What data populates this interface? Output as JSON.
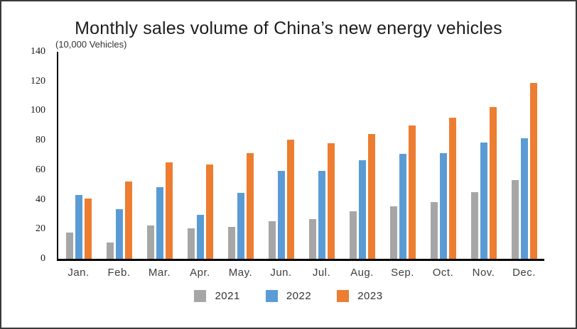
{
  "window": {
    "background": "#ffffff",
    "border_color": "#3a3a3a"
  },
  "chart_data": {
    "type": "bar",
    "title": "Monthly sales volume of China’s new energy vehicles",
    "unit_label": "(10,000 Vehicles)",
    "categories": [
      "Jan.",
      "Feb.",
      "Mar.",
      "Apr.",
      "May.",
      "Jun.",
      "Jul.",
      "Aug.",
      "Sep.",
      "Oct.",
      "Nov.",
      "Dec."
    ],
    "series": [
      {
        "name": "2021",
        "color": "#A6A6A6",
        "values": [
          17.9,
          11.0,
          22.6,
          20.6,
          21.7,
          25.6,
          27.1,
          32.1,
          35.7,
          38.3,
          45.0,
          53.1
        ]
      },
      {
        "name": "2022",
        "color": "#5B9BD5",
        "values": [
          43.1,
          33.4,
          48.4,
          29.9,
          44.7,
          59.6,
          59.3,
          66.6,
          70.8,
          71.4,
          78.6,
          81.4
        ]
      },
      {
        "name": "2023",
        "color": "#ED7D31",
        "values": [
          40.8,
          52.5,
          65.3,
          63.6,
          71.7,
          80.6,
          78.0,
          84.6,
          90.4,
          95.6,
          102.6,
          119.1
        ]
      }
    ],
    "xlabel": "",
    "ylabel": "",
    "ylim": [
      0,
      140
    ],
    "y_ticks": [
      0,
      20,
      40,
      60,
      80,
      100,
      120,
      140
    ],
    "grid": false,
    "legend_position": "bottom",
    "axis_color": "#000000"
  }
}
